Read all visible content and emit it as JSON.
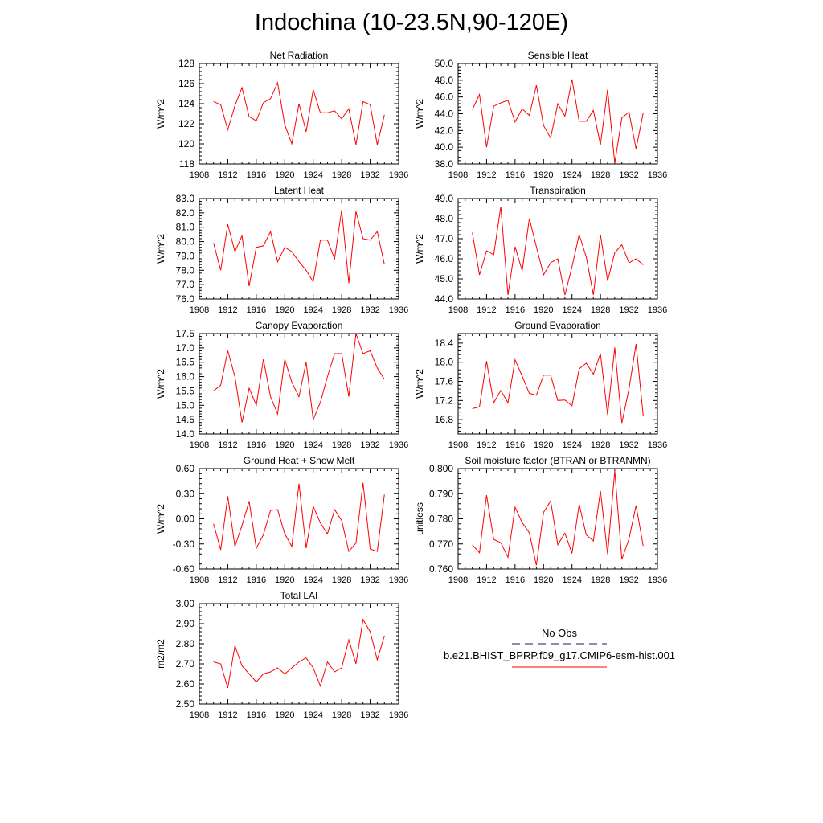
{
  "page": {
    "title": "Indochina (10-23.5N,90-120E)"
  },
  "legend": {
    "obs_label": "No Obs",
    "model_label": "b.e21.BHIST_BPRP.f09_g17.CMIP6-esm-hist.001",
    "obs_color": "#1a1a66",
    "model_color": "#ff0000"
  },
  "chart_data": [
    {
      "type": "line",
      "title": "Net Radiation",
      "ylabel": "W/m^2",
      "xlim": [
        1908,
        1936
      ],
      "ylim": [
        118,
        128
      ],
      "xticks": [
        1908,
        1912,
        1916,
        1920,
        1924,
        1928,
        1932,
        1936
      ],
      "yticks": [
        118,
        120,
        122,
        124,
        126,
        128
      ],
      "ytick_labels": [
        "118",
        "120",
        "122",
        "124",
        "126",
        "128"
      ],
      "x": [
        1910,
        1911,
        1912,
        1913,
        1914,
        1915,
        1916,
        1917,
        1918,
        1919,
        1920,
        1921,
        1922,
        1923,
        1924,
        1925,
        1926,
        1927,
        1928,
        1929,
        1930,
        1931,
        1932,
        1933,
        1934
      ],
      "series": [
        {
          "color": "#ff0000",
          "values": [
            124.2,
            123.9,
            121.4,
            123.8,
            125.6,
            122.7,
            122.3,
            124.1,
            124.5,
            126.1,
            121.9,
            120.0,
            124.0,
            121.2,
            125.4,
            123.1,
            123.1,
            123.3,
            122.5,
            123.5,
            119.9,
            124.2,
            123.9,
            119.9,
            122.9
          ]
        }
      ]
    },
    {
      "type": "line",
      "title": "Sensible Heat",
      "ylabel": "W/m^2",
      "xlim": [
        1908,
        1936
      ],
      "ylim": [
        38,
        50
      ],
      "xticks": [
        1908,
        1912,
        1916,
        1920,
        1924,
        1928,
        1932,
        1936
      ],
      "yticks": [
        38,
        40,
        42,
        44,
        46,
        48,
        50
      ],
      "ytick_labels": [
        "38.0",
        "40.0",
        "42.0",
        "44.0",
        "46.0",
        "48.0",
        "50.0"
      ],
      "x": [
        1910,
        1911,
        1912,
        1913,
        1914,
        1915,
        1916,
        1917,
        1918,
        1919,
        1920,
        1921,
        1922,
        1923,
        1924,
        1925,
        1926,
        1927,
        1928,
        1929,
        1930,
        1931,
        1932,
        1933,
        1934
      ],
      "series": [
        {
          "color": "#ff0000",
          "values": [
            44.5,
            46.3,
            40.0,
            44.9,
            45.3,
            45.6,
            43.0,
            44.6,
            43.8,
            47.4,
            42.6,
            41.1,
            45.2,
            43.7,
            48.1,
            43.1,
            43.1,
            44.4,
            40.3,
            46.9,
            38.1,
            43.5,
            44.2,
            39.8,
            44.1
          ]
        }
      ]
    },
    {
      "type": "line",
      "title": "Latent Heat",
      "ylabel": "W/m^2",
      "xlim": [
        1908,
        1936
      ],
      "ylim": [
        76,
        83
      ],
      "xticks": [
        1908,
        1912,
        1916,
        1920,
        1924,
        1928,
        1932,
        1936
      ],
      "yticks": [
        76,
        77,
        78,
        79,
        80,
        81,
        82,
        83
      ],
      "ytick_labels": [
        "76.0",
        "77.0",
        "78.0",
        "79.0",
        "80.0",
        "81.0",
        "82.0",
        "83.0"
      ],
      "x": [
        1910,
        1911,
        1912,
        1913,
        1914,
        1915,
        1916,
        1917,
        1918,
        1919,
        1920,
        1921,
        1922,
        1923,
        1924,
        1925,
        1926,
        1927,
        1928,
        1929,
        1930,
        1931,
        1932,
        1933,
        1934
      ],
      "series": [
        {
          "color": "#ff0000",
          "values": [
            79.9,
            78.0,
            81.2,
            79.3,
            80.4,
            76.9,
            79.6,
            79.7,
            80.7,
            78.6,
            79.6,
            79.3,
            78.6,
            78.0,
            77.2,
            80.1,
            80.1,
            78.8,
            82.2,
            77.1,
            82.1,
            80.2,
            80.1,
            80.7,
            78.4
          ]
        }
      ]
    },
    {
      "type": "line",
      "title": "Transpiration",
      "ylabel": "W/m^2",
      "xlim": [
        1908,
        1936
      ],
      "ylim": [
        44,
        49
      ],
      "xticks": [
        1908,
        1912,
        1916,
        1920,
        1924,
        1928,
        1932,
        1936
      ],
      "yticks": [
        44,
        45,
        46,
        47,
        48,
        49
      ],
      "ytick_labels": [
        "44.0",
        "45.0",
        "46.0",
        "47.0",
        "48.0",
        "49.0"
      ],
      "x": [
        1910,
        1911,
        1912,
        1913,
        1914,
        1915,
        1916,
        1917,
        1918,
        1919,
        1920,
        1921,
        1922,
        1923,
        1924,
        1925,
        1926,
        1927,
        1928,
        1929,
        1930,
        1931,
        1932,
        1933,
        1934
      ],
      "series": [
        {
          "color": "#ff0000",
          "values": [
            47.3,
            45.2,
            46.4,
            46.2,
            48.6,
            44.2,
            46.6,
            45.4,
            48.0,
            46.6,
            45.2,
            45.8,
            46.0,
            44.2,
            45.6,
            47.2,
            46.1,
            44.2,
            47.2,
            44.9,
            46.3,
            46.7,
            45.8,
            46.0,
            45.7
          ]
        }
      ]
    },
    {
      "type": "line",
      "title": "Canopy Evaporation",
      "ylabel": "W/m^2",
      "xlim": [
        1908,
        1936
      ],
      "ylim": [
        14,
        17.5
      ],
      "xticks": [
        1908,
        1912,
        1916,
        1920,
        1924,
        1928,
        1932,
        1936
      ],
      "yticks": [
        14.0,
        14.5,
        15.0,
        15.5,
        16.0,
        16.5,
        17.0,
        17.5
      ],
      "ytick_labels": [
        "14.0",
        "14.5",
        "15.0",
        "15.5",
        "16.0",
        "16.5",
        "17.0",
        "17.5"
      ],
      "x": [
        1910,
        1911,
        1912,
        1913,
        1914,
        1915,
        1916,
        1917,
        1918,
        1919,
        1920,
        1921,
        1922,
        1923,
        1924,
        1925,
        1926,
        1927,
        1928,
        1929,
        1930,
        1931,
        1932,
        1933,
        1934
      ],
      "series": [
        {
          "color": "#ff0000",
          "values": [
            15.5,
            15.7,
            16.9,
            16.0,
            14.4,
            15.6,
            15.0,
            16.6,
            15.3,
            14.7,
            16.6,
            15.8,
            15.3,
            16.5,
            14.5,
            15.1,
            16.0,
            16.8,
            16.8,
            15.3,
            17.5,
            16.8,
            16.9,
            16.3,
            15.9
          ]
        }
      ]
    },
    {
      "type": "line",
      "title": "Ground Evaporation",
      "ylabel": "W/m^2",
      "xlim": [
        1908,
        1936
      ],
      "ylim": [
        16.5,
        18.6
      ],
      "xticks": [
        1908,
        1912,
        1916,
        1920,
        1924,
        1928,
        1932,
        1936
      ],
      "yticks": [
        16.8,
        17.2,
        17.6,
        18.0,
        18.4
      ],
      "ytick_labels": [
        "16.8",
        "17.2",
        "17.6",
        "18.0",
        "18.4"
      ],
      "x": [
        1910,
        1911,
        1912,
        1913,
        1914,
        1915,
        1916,
        1917,
        1918,
        1919,
        1920,
        1921,
        1922,
        1923,
        1924,
        1925,
        1926,
        1927,
        1928,
        1929,
        1930,
        1931,
        1932,
        1933,
        1934
      ],
      "series": [
        {
          "color": "#ff0000",
          "values": [
            17.03,
            17.07,
            18.02,
            17.15,
            17.41,
            17.15,
            18.05,
            17.71,
            17.35,
            17.31,
            17.73,
            17.73,
            17.2,
            17.21,
            17.09,
            17.86,
            17.98,
            17.75,
            18.18,
            16.9,
            18.31,
            16.73,
            17.44,
            18.38,
            16.88
          ]
        }
      ]
    },
    {
      "type": "line",
      "title": "Ground Heat + Snow Melt",
      "ylabel": "W/m^2",
      "xlim": [
        1908,
        1936
      ],
      "ylim": [
        -0.6,
        0.6
      ],
      "xticks": [
        1908,
        1912,
        1916,
        1920,
        1924,
        1928,
        1932,
        1936
      ],
      "yticks": [
        -0.6,
        -0.3,
        0.0,
        0.3,
        0.6
      ],
      "ytick_labels": [
        "-0.60",
        "-0.30",
        "0.00",
        "0.30",
        "0.60"
      ],
      "x": [
        1910,
        1911,
        1912,
        1913,
        1914,
        1915,
        1916,
        1917,
        1918,
        1919,
        1920,
        1921,
        1922,
        1923,
        1924,
        1925,
        1926,
        1927,
        1928,
        1929,
        1930,
        1931,
        1932,
        1933,
        1934
      ],
      "series": [
        {
          "color": "#ff0000",
          "values": [
            -0.06,
            -0.37,
            0.27,
            -0.33,
            -0.08,
            0.21,
            -0.35,
            -0.19,
            0.1,
            0.11,
            -0.18,
            -0.33,
            0.42,
            -0.35,
            0.15,
            -0.05,
            -0.18,
            0.11,
            -0.02,
            -0.39,
            -0.29,
            0.43,
            -0.36,
            -0.39,
            0.29
          ]
        }
      ]
    },
    {
      "type": "line",
      "title": "Soil moisture factor (BTRAN or BTRANMN)",
      "ylabel": "unitless",
      "xlim": [
        1908,
        1936
      ],
      "ylim": [
        0.76,
        0.8
      ],
      "xticks": [
        1908,
        1912,
        1916,
        1920,
        1924,
        1928,
        1932,
        1936
      ],
      "yticks": [
        0.76,
        0.77,
        0.78,
        0.79,
        0.8
      ],
      "ytick_labels": [
        "0.760",
        "0.770",
        "0.780",
        "0.790",
        "0.800"
      ],
      "x": [
        1910,
        1911,
        1912,
        1913,
        1914,
        1915,
        1916,
        1917,
        1918,
        1919,
        1920,
        1921,
        1922,
        1923,
        1924,
        1925,
        1926,
        1927,
        1928,
        1929,
        1930,
        1931,
        1932,
        1933,
        1934
      ],
      "series": [
        {
          "color": "#ff0000",
          "values": [
            0.7697,
            0.7665,
            0.7894,
            0.7718,
            0.7705,
            0.7647,
            0.7846,
            0.7785,
            0.7744,
            0.7615,
            0.7826,
            0.7871,
            0.7697,
            0.7743,
            0.7662,
            0.7858,
            0.7736,
            0.7712,
            0.7911,
            0.7659,
            0.7991,
            0.7638,
            0.772,
            0.7853,
            0.7692
          ]
        }
      ]
    },
    {
      "type": "line",
      "title": "Total LAI",
      "ylabel": "m2/m2",
      "xlim": [
        1908,
        1936
      ],
      "ylim": [
        2.5,
        3.0
      ],
      "xticks": [
        1908,
        1912,
        1916,
        1920,
        1924,
        1928,
        1932,
        1936
      ],
      "yticks": [
        2.5,
        2.6,
        2.7,
        2.8,
        2.9,
        3.0
      ],
      "ytick_labels": [
        "2.50",
        "2.60",
        "2.70",
        "2.80",
        "2.90",
        "3.00"
      ],
      "x": [
        1910,
        1911,
        1912,
        1913,
        1914,
        1915,
        1916,
        1917,
        1918,
        1919,
        1920,
        1921,
        1922,
        1923,
        1924,
        1925,
        1926,
        1927,
        1928,
        1929,
        1930,
        1931,
        1932,
        1933,
        1934
      ],
      "series": [
        {
          "color": "#ff0000",
          "values": [
            2.71,
            2.7,
            2.58,
            2.79,
            2.69,
            2.65,
            2.61,
            2.65,
            2.66,
            2.68,
            2.65,
            2.68,
            2.71,
            2.73,
            2.68,
            2.59,
            2.71,
            2.66,
            2.68,
            2.82,
            2.7,
            2.92,
            2.86,
            2.72,
            2.84
          ]
        }
      ]
    }
  ]
}
